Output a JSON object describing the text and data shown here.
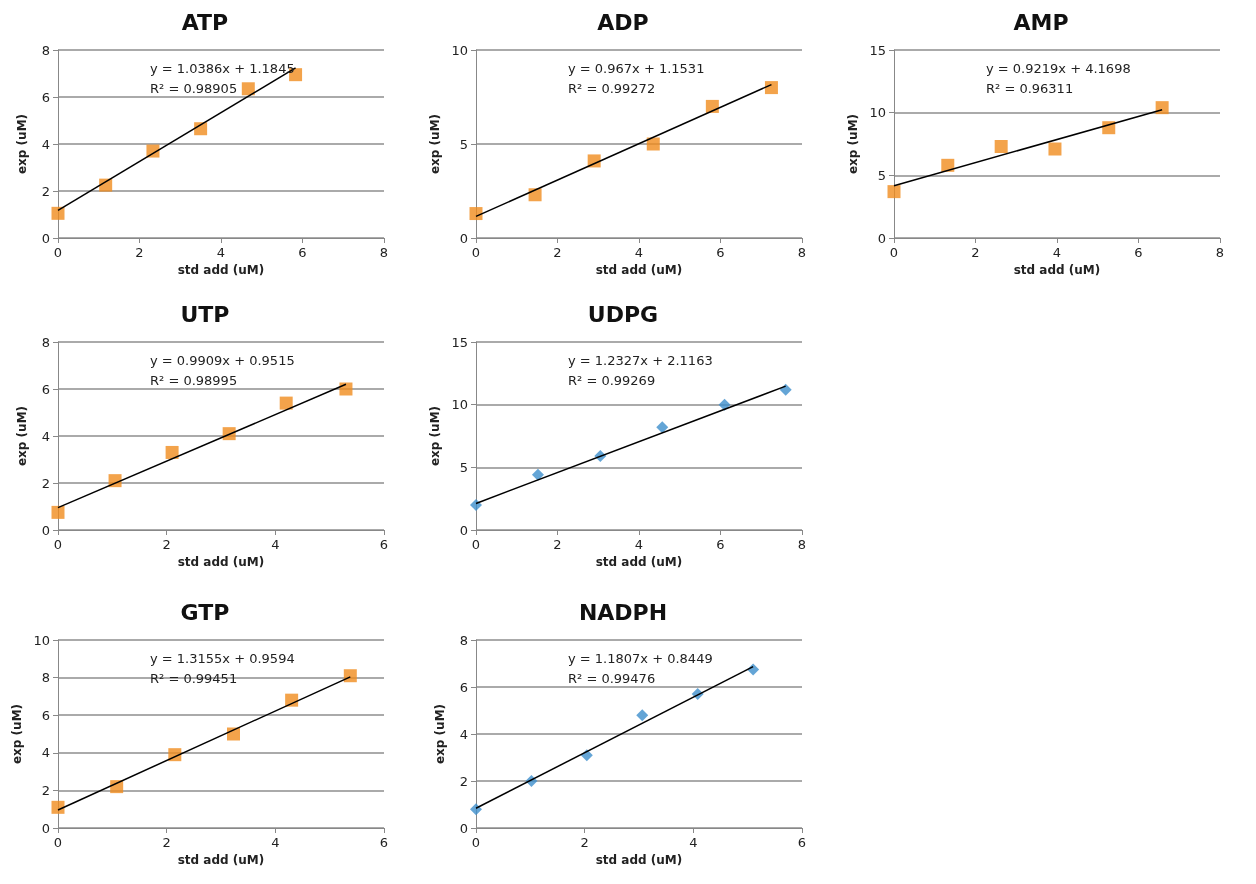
{
  "chart_data": [
    {
      "type": "scatter",
      "title": "ATP",
      "xlabel": "std add (uM)",
      "ylabel": "exp (uM)",
      "xlim": [
        0,
        8
      ],
      "xticks": [
        0,
        2,
        4,
        6,
        8
      ],
      "ylim": [
        0,
        8
      ],
      "yticks": [
        0,
        2,
        4,
        6,
        8
      ],
      "grid": "y",
      "annotations": [
        "y = 1.0386x + 1.1845",
        "R² = 0.98905"
      ],
      "series": [
        {
          "color": "#f08c1e",
          "marker": "square",
          "x": [
            0,
            1.17,
            2.33,
            3.5,
            4.67,
            5.83
          ],
          "values": [
            1.05,
            2.25,
            3.7,
            4.65,
            6.35,
            6.95
          ]
        },
        {
          "type": "line",
          "color": "#000000",
          "marker": "none",
          "line_style": "solid",
          "x": [
            0,
            5.83
          ],
          "values": [
            1.18,
            7.24
          ]
        }
      ]
    },
    {
      "type": "scatter",
      "title": "ADP",
      "xlabel": "std add (uM)",
      "ylabel": "exp (uM)",
      "xlim": [
        0,
        8
      ],
      "xticks": [
        0,
        2,
        4,
        6,
        8
      ],
      "ylim": [
        0,
        10
      ],
      "yticks": [
        0,
        5,
        10
      ],
      "grid": "y",
      "annotations": [
        "y = 0.967x + 1.1531",
        "R² = 0.99272"
      ],
      "series": [
        {
          "color": "#f08c1e",
          "marker": "square",
          "x": [
            0,
            1.45,
            2.9,
            4.35,
            5.8,
            7.25
          ],
          "values": [
            1.3,
            2.3,
            4.1,
            5.0,
            7.0,
            8.0
          ]
        },
        {
          "type": "line",
          "color": "#000000",
          "marker": "none",
          "line_style": "solid",
          "x": [
            0,
            7.25
          ],
          "values": [
            1.15,
            8.16
          ]
        }
      ]
    },
    {
      "type": "scatter",
      "title": "AMP",
      "xlabel": "std add (uM)",
      "ylabel": "exp (uM)",
      "xlim": [
        0,
        8
      ],
      "xticks": [
        0,
        2,
        4,
        6,
        8
      ],
      "ylim": [
        0,
        15
      ],
      "yticks": [
        0,
        5,
        10,
        15
      ],
      "grid": "y",
      "annotations": [
        "y = 0.9219x + 4.1698",
        "R² = 0.96311"
      ],
      "series": [
        {
          "color": "#f08c1e",
          "marker": "square",
          "x": [
            0,
            1.32,
            2.63,
            3.95,
            5.27,
            6.58
          ],
          "values": [
            3.7,
            5.8,
            7.3,
            7.1,
            8.8,
            10.4
          ]
        },
        {
          "type": "line",
          "color": "#000000",
          "marker": "none",
          "line_style": "solid",
          "x": [
            0,
            6.58
          ],
          "values": [
            4.17,
            10.24
          ]
        }
      ]
    },
    {
      "type": "scatter",
      "title": "UTP",
      "xlabel": "std add (uM)",
      "ylabel": "exp (uM)",
      "xlim": [
        0,
        6
      ],
      "xticks": [
        0,
        2,
        4,
        6
      ],
      "ylim": [
        0,
        8
      ],
      "yticks": [
        0,
        2,
        4,
        6,
        8
      ],
      "grid": "y",
      "annotations": [
        "y = 0.9909x + 0.9515",
        "R² = 0.98995"
      ],
      "series": [
        {
          "color": "#f08c1e",
          "marker": "square",
          "x": [
            0,
            1.05,
            2.1,
            3.15,
            4.2,
            5.3
          ],
          "values": [
            0.75,
            2.1,
            3.3,
            4.1,
            5.4,
            6.0
          ]
        },
        {
          "type": "line",
          "color": "#000000",
          "marker": "none",
          "line_style": "solid",
          "x": [
            0,
            5.3
          ],
          "values": [
            0.95,
            6.2
          ]
        }
      ]
    },
    {
      "type": "scatter",
      "title": "UDPG",
      "xlabel": "std add (uM)",
      "ylabel": "exp (uM)",
      "xlim": [
        0,
        8
      ],
      "xticks": [
        0,
        2,
        4,
        6,
        8
      ],
      "ylim": [
        0,
        15
      ],
      "yticks": [
        0,
        5,
        10,
        15
      ],
      "grid": "y",
      "annotations": [
        "y = 1.2327x + 2.1163",
        "R² = 0.99269"
      ],
      "series": [
        {
          "color": "#3d8fcc",
          "marker": "diamond",
          "x": [
            0,
            1.52,
            3.05,
            4.57,
            6.1,
            7.6
          ],
          "values": [
            2.0,
            4.4,
            5.9,
            8.2,
            10.0,
            11.2
          ]
        },
        {
          "type": "line",
          "color": "#000000",
          "marker": "none",
          "line_style": "solid",
          "x": [
            0,
            7.6
          ],
          "values": [
            2.12,
            11.48
          ]
        }
      ]
    },
    {
      "type": "scatter",
      "title": "GTP",
      "xlabel": "std add (uM)",
      "ylabel": "exp (uM)",
      "xlim": [
        0,
        6
      ],
      "xticks": [
        0,
        2,
        4,
        6
      ],
      "ylim": [
        0,
        10
      ],
      "yticks": [
        0,
        2,
        4,
        6,
        8,
        10
      ],
      "grid": "y",
      "annotations": [
        "y = 1.3155x + 0.9594",
        "R² = 0.99451"
      ],
      "series": [
        {
          "color": "#f08c1e",
          "marker": "square",
          "x": [
            0,
            1.08,
            2.15,
            3.23,
            4.3,
            5.38
          ],
          "values": [
            1.1,
            2.2,
            3.9,
            5.0,
            6.8,
            8.1
          ]
        },
        {
          "type": "line",
          "color": "#000000",
          "marker": "none",
          "line_style": "solid",
          "x": [
            0,
            5.38
          ],
          "values": [
            0.96,
            8.04
          ]
        }
      ]
    },
    {
      "type": "scatter",
      "title": "NADPH",
      "xlabel": "std add (uM)",
      "ylabel": "exp (uM)",
      "xlim": [
        0,
        6
      ],
      "xticks": [
        0,
        2,
        4,
        6
      ],
      "ylim": [
        0,
        8
      ],
      "yticks": [
        0,
        2,
        4,
        6,
        8
      ],
      "grid": "y",
      "annotations": [
        "y = 1.1807x + 0.8449",
        "R² = 0.99476"
      ],
      "series": [
        {
          "color": "#3d8fcc",
          "marker": "diamond",
          "x": [
            0,
            1.02,
            2.04,
            3.06,
            4.08,
            5.1
          ],
          "values": [
            0.8,
            2.0,
            3.1,
            4.8,
            5.7,
            6.75
          ]
        },
        {
          "type": "line",
          "color": "#000000",
          "marker": "none",
          "line_style": "solid",
          "x": [
            0,
            5.1
          ],
          "values": [
            0.84,
            6.87
          ]
        }
      ]
    }
  ]
}
